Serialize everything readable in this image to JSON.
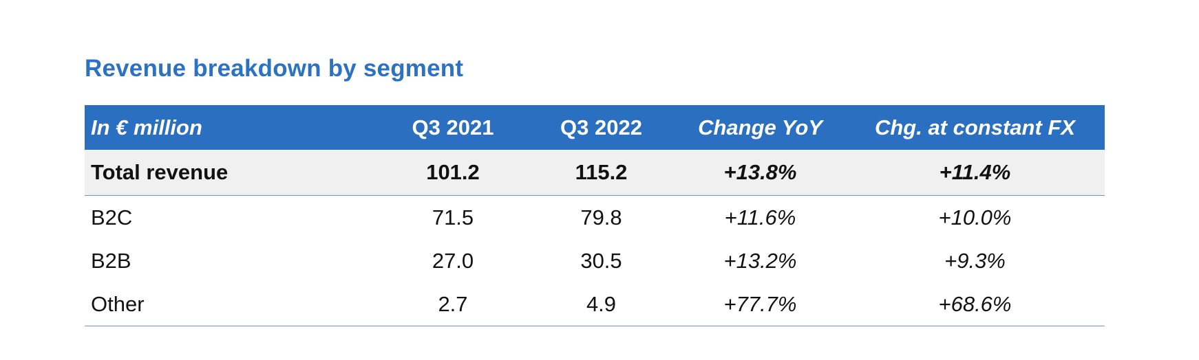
{
  "title": "Revenue breakdown by segment",
  "colors": {
    "title": "#2b73c2",
    "header_bg": "#2b6fc0",
    "total_row_bg": "#f0f0f0",
    "rule": "#6f93c4"
  },
  "table": {
    "headers": [
      "In € million",
      "Q3 2021",
      "Q3 2022",
      "Change YoY",
      "Chg. at constant FX"
    ],
    "total": {
      "label": "Total revenue",
      "q3_2021": "101.2",
      "q3_2022": "115.2",
      "change_yoy": "+13.8%",
      "chg_constant_fx": "+11.4%"
    },
    "rows": [
      {
        "label": "B2C",
        "q3_2021": "71.5",
        "q3_2022": "79.8",
        "change_yoy": "+11.6%",
        "chg_constant_fx": "+10.0%"
      },
      {
        "label": "B2B",
        "q3_2021": "27.0",
        "q3_2022": "30.5",
        "change_yoy": "+13.2%",
        "chg_constant_fx": "+9.3%"
      },
      {
        "label": "Other",
        "q3_2021": "2.7",
        "q3_2022": "4.9",
        "change_yoy": "+77.7%",
        "chg_constant_fx": "+68.6%"
      }
    ]
  }
}
